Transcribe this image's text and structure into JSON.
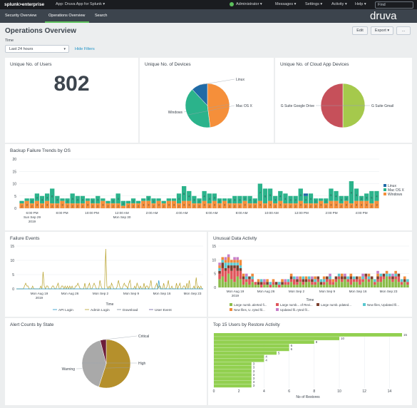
{
  "topbar": {
    "logo": "splunk>enterprise",
    "app": "App: Druva App for Splunk ▾",
    "user": "Administrator ▾",
    "messages": "Messages ▾",
    "settings": "Settings ▾",
    "activity": "Activity ▾",
    "help": "Help ▾",
    "find_placeholder": "Find"
  },
  "nav": {
    "tabs": [
      "Security Overview",
      "Operations Overview",
      "Search"
    ],
    "brand": "druva"
  },
  "page": {
    "title": "Operations Overview",
    "edit": "Edit",
    "export": "Export ▾",
    "more": "...",
    "time_label": "Time",
    "time_value": "Last 24 hours",
    "hide_filters": "Hide Filters"
  },
  "panels": {
    "users": {
      "title": "Unique No. of Users",
      "value": "802"
    },
    "devices": {
      "title": "Unique No. of Devices"
    },
    "cloud": {
      "title": "Unique No. of Cloud App Devices"
    },
    "backup": {
      "title": "Backup Failure Trends by OS"
    },
    "failure": {
      "title": "Failure Events",
      "xlabel": "Time"
    },
    "unusual": {
      "title": "Unusual Data Activity",
      "xlabel": "Time"
    },
    "alert": {
      "title": "Alert Counts by State"
    },
    "restore": {
      "title": "Top 15 Users by Restore Activity",
      "xlabel": "No of Restores"
    }
  },
  "colors": {
    "windows": "#f58f3a",
    "macos": "#2bb38b",
    "linux": "#1f6aa6",
    "gsuite_drive": "#a5c94c",
    "gsuite_gmail": "#c6505a",
    "warning": "#b5902c",
    "high": "#a9a9a9",
    "critical": "#6d1e3a",
    "bar_green": "#92d050"
  },
  "chart_data": [
    {
      "type": "pie",
      "title": "Unique No. of Devices",
      "labels": [
        "Windows",
        "Mac OS X",
        "Linux"
      ],
      "values": [
        48,
        40,
        12
      ]
    },
    {
      "type": "pie",
      "title": "Unique No. of Cloud App Devices",
      "labels": [
        "G Suite Google Drive",
        "G Suite Gmail"
      ],
      "values": [
        50,
        50
      ]
    },
    {
      "type": "bar",
      "title": "Backup Failure Trends by OS",
      "stacked": true,
      "ylim": [
        0,
        20
      ],
      "yticks": [
        0,
        5,
        10,
        15,
        20
      ],
      "xticks": [
        "6:00 PM\nSun Sep 29\n2019",
        "8:00 PM",
        "10:00 PM",
        "12:00 AM\nMon Sep 30",
        "2:00 AM",
        "4:00 AM",
        "6:00 AM",
        "8:00 AM",
        "10:00 AM",
        "12:00 PM",
        "2:00 PM",
        "4:00 PM"
      ],
      "legend": [
        "Linux",
        "Mac OS X",
        "Windows"
      ],
      "series": [
        {
          "name": "Windows",
          "values": [
            2,
            3,
            2,
            3,
            2,
            3,
            2,
            2,
            3,
            2,
            2,
            2,
            2,
            3,
            2,
            2,
            3,
            2,
            2,
            2,
            1,
            2,
            2,
            2,
            3,
            3,
            2,
            3,
            2,
            3,
            3,
            2,
            3,
            3,
            2,
            2,
            3,
            2,
            3,
            2,
            3,
            2,
            2,
            2,
            3,
            2,
            2,
            3,
            2,
            3,
            2,
            3,
            2,
            2,
            2,
            3,
            2,
            2,
            2,
            3,
            2,
            3,
            3,
            2,
            3,
            2,
            3,
            3,
            3,
            2,
            3
          ]
        },
        {
          "name": "Mac OS X",
          "values": [
            1,
            1,
            2,
            3,
            3,
            3,
            6,
            3,
            1,
            2,
            4,
            3,
            3,
            1,
            2,
            3,
            1,
            1,
            2,
            4,
            2,
            1,
            2,
            1,
            1,
            2,
            2,
            1,
            1,
            1,
            1,
            4,
            6,
            4,
            3,
            2,
            4,
            4,
            3,
            2,
            1,
            2,
            3,
            3,
            2,
            3,
            2,
            7,
            6,
            5,
            3,
            4,
            4,
            3,
            3,
            5,
            3,
            4,
            2,
            1,
            2,
            5,
            4,
            3,
            2,
            9,
            5,
            2,
            3,
            5,
            4
          ]
        },
        {
          "name": "Linux",
          "values": [
            0,
            0,
            0,
            0,
            0,
            0,
            0,
            0,
            0,
            0,
            0,
            0,
            0,
            0,
            0,
            0,
            0,
            0,
            0,
            0,
            0,
            0,
            0,
            0,
            0,
            0,
            0,
            0,
            0,
            0,
            0,
            0,
            0,
            0,
            0,
            0,
            0,
            0,
            0,
            0,
            0,
            0,
            0,
            0,
            0,
            0,
            0,
            0,
            0,
            0,
            0,
            0,
            0,
            0,
            0,
            0,
            1,
            0,
            0,
            0,
            0,
            0,
            0,
            0,
            0,
            0,
            0,
            0,
            0,
            0,
            0
          ]
        }
      ]
    },
    {
      "type": "line",
      "title": "Failure Events",
      "xlabel": "Time",
      "ylim": [
        0,
        15
      ],
      "yticks": [
        0,
        5,
        10,
        15
      ],
      "xticks": [
        "Mon Aug 19\n2019",
        "Mon Aug 26",
        "Mon Sep 2",
        "Mon Sep 9",
        "Mon Sep 16",
        "Mon Sep 23"
      ],
      "legend": [
        "API Login",
        "Admin Login",
        "Download",
        "User Event"
      ],
      "series": [
        {
          "name": "Admin Login",
          "values": [
            0,
            0,
            0,
            0,
            0,
            0,
            0,
            1,
            2,
            1,
            1,
            0,
            0,
            0,
            1,
            0,
            0,
            0,
            0,
            0,
            0,
            1,
            0,
            6,
            1,
            0,
            1,
            1,
            0,
            0,
            0,
            1,
            1,
            0,
            0,
            1,
            2,
            0,
            0,
            1,
            1,
            0,
            1,
            0,
            1,
            0,
            1,
            0,
            1,
            0,
            0,
            1,
            1,
            2,
            1,
            0,
            0,
            0,
            0,
            2,
            0,
            0,
            1,
            2,
            0,
            0,
            1,
            2,
            1,
            0,
            0,
            0,
            3,
            1,
            0,
            0,
            0,
            14,
            1,
            0,
            1,
            0,
            2,
            1,
            0,
            0,
            0,
            1,
            3,
            1,
            0,
            0,
            1,
            2,
            1,
            1,
            0,
            2,
            3,
            0,
            0,
            0,
            1,
            0,
            2,
            1,
            0,
            1,
            0,
            0,
            2,
            0,
            1,
            1,
            0,
            1,
            3,
            0,
            0,
            0,
            1,
            2,
            0,
            1,
            1,
            0,
            0,
            2,
            0,
            0,
            1,
            3,
            0,
            0,
            1,
            0,
            0,
            0,
            2,
            0,
            1,
            2,
            0,
            0,
            1,
            1,
            0,
            2,
            0,
            3,
            0,
            0,
            0,
            1,
            0,
            4,
            0,
            1,
            0,
            1,
            0,
            0
          ]
        },
        {
          "name": "API Login",
          "values": [
            0,
            0,
            0,
            0,
            0,
            0,
            0,
            0,
            0,
            0,
            0,
            0,
            0,
            0,
            0,
            0,
            0,
            0,
            0,
            0,
            0,
            0,
            0,
            0,
            0,
            0,
            0,
            0,
            0,
            0,
            0,
            0,
            0,
            0,
            0,
            0,
            0,
            0,
            0,
            0,
            0,
            0,
            0,
            0,
            0,
            0,
            0,
            0,
            0,
            0,
            0,
            0,
            0,
            0,
            0,
            0,
            0,
            0,
            0,
            0,
            0,
            0,
            0,
            0,
            0,
            0,
            0,
            0,
            0,
            0,
            0,
            0,
            0,
            0,
            0,
            0,
            0,
            0,
            0,
            0,
            0,
            0,
            0,
            0,
            0,
            0,
            0,
            0,
            0,
            0,
            0,
            0,
            0,
            0,
            0,
            0,
            0,
            0,
            0,
            0,
            0,
            0,
            0,
            0,
            0,
            0,
            0,
            0,
            0,
            0,
            0,
            0,
            0,
            0,
            0,
            0,
            0,
            0,
            0,
            0,
            0,
            0,
            3,
            0,
            0,
            0,
            0,
            0,
            0,
            0,
            0,
            0,
            0,
            0,
            0,
            0,
            0,
            0,
            0,
            0,
            0,
            0,
            0,
            0,
            0,
            0,
            0,
            0,
            0,
            0,
            0,
            0,
            0,
            0,
            0,
            0,
            0,
            0,
            0,
            0,
            0
          ]
        }
      ]
    },
    {
      "type": "bar",
      "title": "Unusual Data Activity",
      "stacked": true,
      "xlabel": "Time",
      "ylim": [
        0,
        15
      ],
      "yticks": [
        0,
        5,
        10,
        15
      ],
      "xticks": [
        "Mon Aug 19\n2019",
        "Mon Aug 26",
        "Mon Sep 2",
        "Mon Sep 9",
        "Mon Sep 16",
        "Mon Sep 23"
      ],
      "legend": [
        "Large numb..alerted fi...",
        "Large numb... of Revi...",
        "Large numb..pdated...",
        "New files, Updated fil...",
        "New files, U..ryted fil...",
        "Updated fil..ryted fil..."
      ],
      "series": [
        {
          "name": "Large numb..alerted fi...",
          "values": [
            3,
            4,
            2,
            5,
            3,
            2,
            4,
            3,
            1,
            2,
            1,
            2,
            1,
            1,
            0,
            1,
            1,
            0,
            1,
            1,
            0,
            1,
            1,
            1,
            2,
            1,
            1,
            2,
            1,
            2,
            2,
            1,
            1,
            2,
            1,
            1,
            2,
            1,
            1,
            2,
            3,
            2,
            3,
            2,
            1,
            2,
            2,
            1,
            2,
            3,
            2,
            3,
            1,
            2,
            2,
            3,
            4,
            3,
            2,
            3,
            2,
            1,
            2,
            1
          ]
        },
        {
          "name": "Large numb... of Revi...",
          "values": [
            2,
            3,
            4,
            2,
            3,
            5,
            2,
            3,
            2,
            1,
            2,
            1,
            1,
            0,
            1,
            1,
            0,
            1,
            1,
            0,
            1,
            0,
            1,
            1,
            1,
            2,
            1,
            1,
            1,
            0,
            1,
            1,
            1,
            1,
            0,
            1,
            1,
            2,
            1,
            1,
            1,
            1,
            0,
            1,
            2,
            1,
            1,
            2,
            1,
            1,
            1,
            0,
            1,
            1,
            2,
            1,
            0,
            1,
            1,
            1,
            2,
            1,
            0,
            1
          ]
        },
        {
          "name": "Large numb..pdated...",
          "values": [
            1,
            2,
            1,
            1,
            2,
            1,
            2,
            1,
            1,
            0,
            1,
            0,
            0,
            1,
            1,
            0,
            1,
            0,
            0,
            1,
            0,
            1,
            0,
            0,
            1,
            0,
            1,
            0,
            1,
            1,
            0,
            1,
            0,
            1,
            1,
            0,
            1,
            0,
            0,
            1,
            0,
            1,
            1,
            0,
            1,
            0,
            1,
            0,
            0,
            1,
            0,
            1,
            0,
            1,
            0,
            1,
            0,
            0,
            1,
            0,
            1,
            0,
            1,
            0
          ]
        },
        {
          "name": "New files, Updated fil...",
          "values": [
            1,
            1,
            2,
            1,
            1,
            1,
            1,
            1,
            0,
            1,
            0,
            1,
            0,
            0,
            1,
            0,
            0,
            1,
            0,
            0,
            1,
            0,
            0,
            1,
            0,
            1,
            0,
            0,
            1,
            0,
            1,
            0,
            1,
            0,
            1,
            1,
            0,
            1,
            0,
            0,
            1,
            0,
            0,
            1,
            0,
            1,
            0,
            0,
            1,
            0,
            1,
            0,
            1,
            0,
            1,
            0,
            1,
            1,
            0,
            1,
            0,
            1,
            0,
            1
          ]
        },
        {
          "name": "New files, U..ryted fil...",
          "values": [
            1,
            1,
            1,
            2,
            1,
            1,
            1,
            2,
            1,
            0,
            0,
            1,
            0,
            1,
            0,
            0,
            1,
            0,
            1,
            0,
            0,
            1,
            0,
            0,
            1,
            0,
            0,
            1,
            0,
            1,
            0,
            0,
            1,
            0,
            0,
            1,
            0,
            0,
            1,
            0,
            0,
            1,
            0,
            0,
            1,
            0,
            0,
            1,
            0,
            0,
            1,
            0,
            0,
            1,
            0,
            0,
            1,
            0,
            0,
            1,
            0,
            0,
            1,
            0
          ]
        },
        {
          "name": "Updated fil..ryted fil...",
          "values": [
            1,
            0,
            1,
            1,
            0,
            1,
            1,
            0,
            0,
            1,
            0,
            0,
            0,
            0,
            0,
            1,
            0,
            0,
            0,
            0,
            0,
            0,
            1,
            0,
            0,
            0,
            1,
            0,
            0,
            0,
            0,
            1,
            0,
            0,
            0,
            0,
            0,
            1,
            0,
            0,
            0,
            0,
            1,
            0,
            0,
            0,
            0,
            0,
            1,
            0,
            0,
            0,
            0,
            1,
            0,
            0,
            0,
            0,
            1,
            0,
            0,
            0,
            0,
            0
          ]
        }
      ]
    },
    {
      "type": "pie",
      "title": "Alert Counts by State",
      "labels": [
        "Warning",
        "High",
        "Critical"
      ],
      "values": [
        55,
        41,
        4
      ]
    },
    {
      "type": "bar",
      "orientation": "horizontal",
      "title": "Top 15 Users by Restore Activity",
      "xlabel": "No of Restores",
      "xlim": [
        0,
        15
      ],
      "xticks": [
        0,
        2,
        4,
        6,
        8,
        10,
        12,
        14
      ],
      "values": [
        15,
        10,
        8,
        6,
        6,
        5,
        4,
        4,
        3,
        3,
        3,
        3,
        3,
        3,
        3
      ]
    }
  ]
}
